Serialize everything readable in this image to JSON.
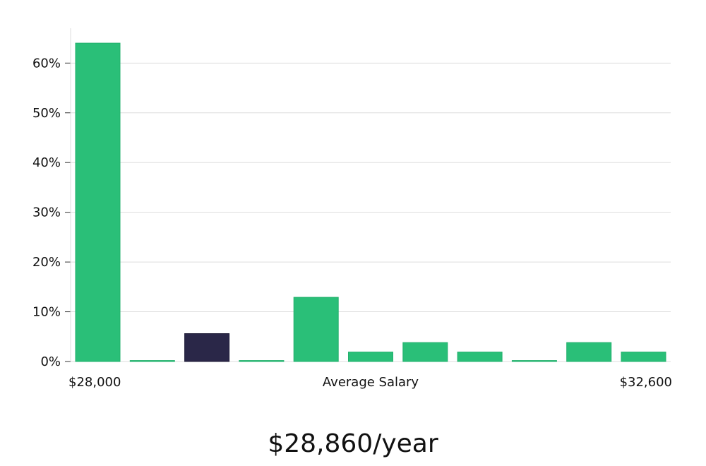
{
  "chart_data": {
    "type": "bar",
    "categories": [
      "1",
      "2",
      "3",
      "4",
      "5",
      "6",
      "7",
      "8",
      "9",
      "10",
      "11"
    ],
    "values": [
      64,
      0.2,
      5.6,
      0.2,
      12.9,
      1.9,
      3.8,
      1.9,
      0.2,
      3.8,
      1.9
    ],
    "highlight_index": 2,
    "ylim": [
      0,
      67
    ],
    "y_ticks": [
      0,
      10,
      20,
      30,
      40,
      50,
      60
    ],
    "y_tick_suffix": "%",
    "grid": true,
    "xlabel": "Average Salary",
    "x_min_label": "$28,000",
    "x_max_label": "$32,600",
    "colors": {
      "bar": "#2abf78",
      "highlight": "#2a2748",
      "grid": "#dddddd",
      "axis": "#dddddd"
    }
  },
  "headline": "$28,860/year"
}
